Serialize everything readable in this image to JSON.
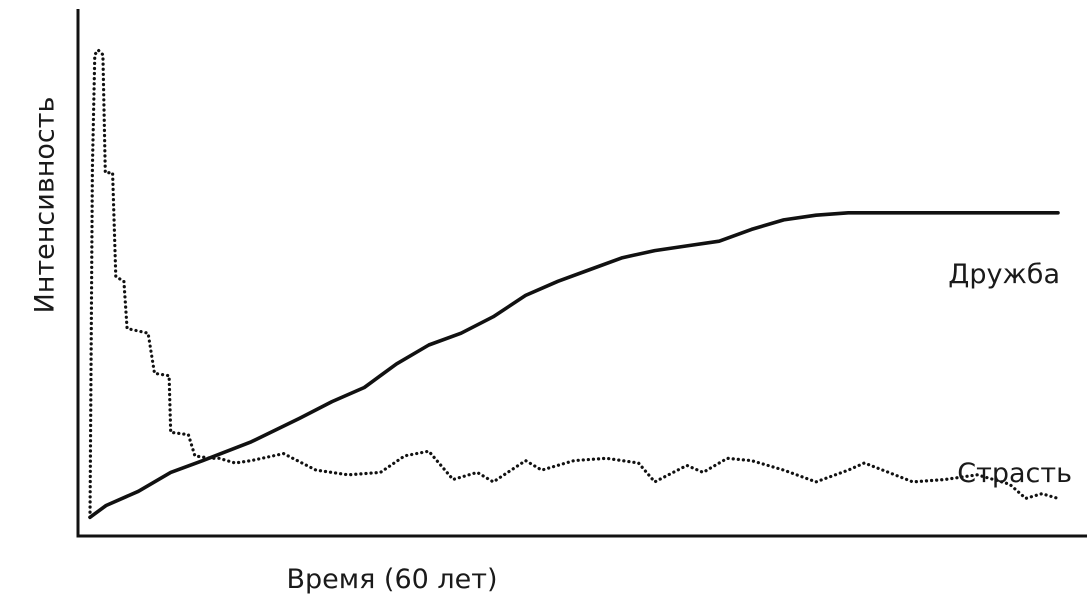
{
  "chart_data": {
    "type": "line",
    "title": "",
    "xlabel": "Время (60 лет)",
    "ylabel": "Интенсивность",
    "x_ticks": false,
    "y_ticks": false,
    "grid": false,
    "xlim": [
      0,
      60
    ],
    "ylim": [
      0,
      100
    ],
    "series": [
      {
        "name": "Дружба",
        "line_style": "solid",
        "color": "#111111",
        "points": [
          [
            0,
            1
          ],
          [
            1,
            3.5
          ],
          [
            3,
            6.5
          ],
          [
            5,
            10.5
          ],
          [
            7,
            13
          ],
          [
            10,
            17
          ],
          [
            13,
            22
          ],
          [
            15,
            25.5
          ],
          [
            17,
            28.5
          ],
          [
            19,
            33.5
          ],
          [
            21,
            37.5
          ],
          [
            23,
            40
          ],
          [
            25,
            43.5
          ],
          [
            27,
            48
          ],
          [
            29,
            51
          ],
          [
            31,
            53.5
          ],
          [
            33,
            56
          ],
          [
            35,
            57.5
          ],
          [
            37,
            58.5
          ],
          [
            39,
            59.5
          ],
          [
            41,
            62
          ],
          [
            43,
            64
          ],
          [
            45,
            65
          ],
          [
            47,
            65.5
          ],
          [
            49,
            65.5
          ],
          [
            51,
            65.5
          ],
          [
            53,
            65.5
          ],
          [
            55,
            65.5
          ],
          [
            57,
            65.5
          ],
          [
            59,
            65.5
          ],
          [
            60,
            65.5
          ]
        ]
      },
      {
        "name": "Страсть",
        "line_style": "dotted",
        "color": "#111111",
        "points": [
          [
            0,
            1
          ],
          [
            0.15,
            75
          ],
          [
            0.3,
            99
          ],
          [
            0.5,
            100
          ],
          [
            0.8,
            99
          ],
          [
            0.95,
            74
          ],
          [
            1.4,
            74
          ],
          [
            1.6,
            52
          ],
          [
            2.1,
            51
          ],
          [
            2.3,
            41
          ],
          [
            3.6,
            40
          ],
          [
            4.0,
            31.5
          ],
          [
            4.9,
            31
          ],
          [
            5.0,
            19
          ],
          [
            6.1,
            18.5
          ],
          [
            6.5,
            14
          ],
          [
            7.5,
            13.5
          ],
          [
            8,
            13.5
          ],
          [
            9,
            12.5
          ],
          [
            10,
            13
          ],
          [
            12,
            14.5
          ],
          [
            14,
            11
          ],
          [
            16,
            10
          ],
          [
            18,
            10.5
          ],
          [
            19.5,
            14
          ],
          [
            21,
            15
          ],
          [
            22.5,
            9
          ],
          [
            24,
            10.5
          ],
          [
            25,
            8.5
          ],
          [
            27,
            13
          ],
          [
            28,
            11
          ],
          [
            30,
            13
          ],
          [
            32,
            13.5
          ],
          [
            34,
            12.5
          ],
          [
            35,
            8.5
          ],
          [
            37,
            12
          ],
          [
            38,
            10.5
          ],
          [
            39.5,
            13.5
          ],
          [
            41,
            13
          ],
          [
            43,
            11
          ],
          [
            45,
            8.5
          ],
          [
            47,
            11
          ],
          [
            48,
            12.5
          ],
          [
            49.5,
            10.5
          ],
          [
            51,
            8.5
          ],
          [
            53,
            9
          ],
          [
            55,
            10
          ],
          [
            56,
            9
          ],
          [
            57,
            8
          ],
          [
            58,
            5
          ],
          [
            59,
            6
          ],
          [
            60,
            5
          ]
        ]
      }
    ],
    "legend": "inline labels at line ends"
  }
}
